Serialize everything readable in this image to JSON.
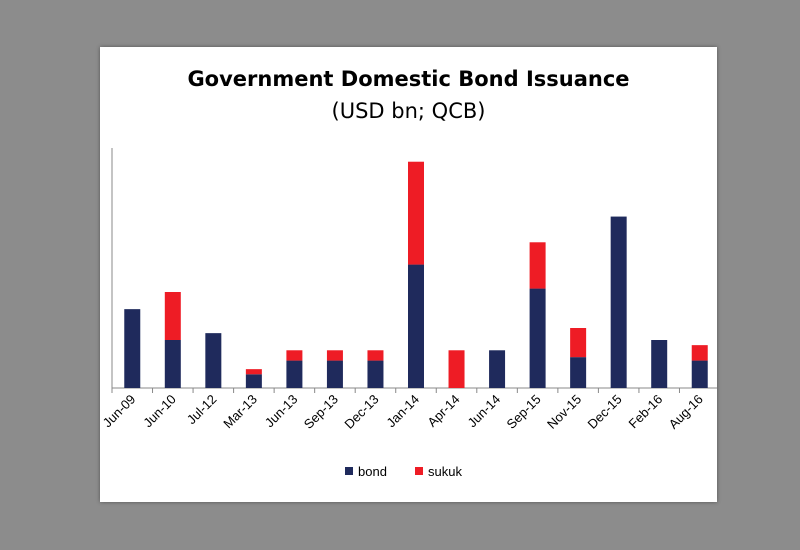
{
  "chart_data": {
    "type": "bar",
    "stacked": true,
    "title": "Government Domestic Bond Issuance",
    "subtitle": "(USD bn; QCB)",
    "xlabel": "",
    "ylabel": "",
    "ylim": [
      0,
      7
    ],
    "yticks": [
      "0.0",
      "1.0",
      "2.0",
      "3.0",
      "4.0",
      "5.0",
      "6.0",
      "7.0"
    ],
    "grid": false,
    "legend_position": "bottom",
    "categories": [
      "Jun-09",
      "Jun-10",
      "Jul-12",
      "Mar-13",
      "Jun-13",
      "Sep-13",
      "Dec-13",
      "Jan-14",
      "Apr-14",
      "Jun-14",
      "Sep-15",
      "Nov-15",
      "Dec-15",
      "Feb-16",
      "Aug-16"
    ],
    "series": [
      {
        "name": "bond",
        "color": "#1f2a5c",
        "values": [
          2.3,
          1.4,
          1.6,
          0.4,
          0.8,
          0.8,
          0.8,
          3.6,
          0,
          1.1,
          2.9,
          0.9,
          5.0,
          1.4,
          0.8
        ]
      },
      {
        "name": "sukuk",
        "color": "#ee1c25",
        "values": [
          0,
          1.4,
          0,
          0.15,
          0.3,
          0.3,
          0.3,
          3.0,
          1.1,
          0,
          1.35,
          0.85,
          0,
          0,
          0.45
        ]
      }
    ]
  }
}
